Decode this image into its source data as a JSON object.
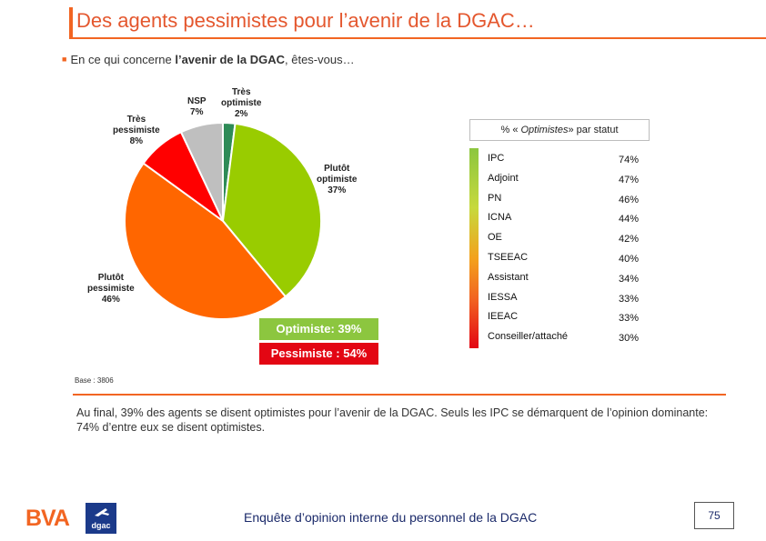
{
  "header": {
    "title": "Des agents pessimistes pour l’avenir de la DGAC…",
    "question_prefix": "En ce qui concerne ",
    "question_bold": "l’avenir de la DGAC",
    "question_suffix": ", êtes-vous…"
  },
  "colors": {
    "accent": "#f26522",
    "very_optimistic": "#2e8b57",
    "optimistic": "#99cc00",
    "pessimistic": "#ff6600",
    "very_pessimistic": "#ff0000",
    "nsp": "#bfbfbf"
  },
  "chart_data": [
    {
      "type": "pie",
      "title": "En ce qui concerne l’avenir de la DGAC, êtes-vous…",
      "slices": [
        {
          "label_lines": [
            "Très",
            "optimiste"
          ],
          "value": 2,
          "value_label": "2%",
          "color": "#2e8b57"
        },
        {
          "label_lines": [
            "Plutôt",
            "optimiste"
          ],
          "value": 37,
          "value_label": "37%",
          "color": "#99cc00"
        },
        {
          "label_lines": [
            "Plutôt",
            "pessimiste"
          ],
          "value": 46,
          "value_label": "46%",
          "color": "#ff6600"
        },
        {
          "label_lines": [
            "Très",
            "pessimiste"
          ],
          "value": 8,
          "value_label": "8%",
          "color": "#ff0000"
        },
        {
          "label_lines": [
            "NSP"
          ],
          "value": 7,
          "value_label": "7%",
          "color": "#bfbfbf"
        }
      ],
      "summary": {
        "optimiste": "Optimiste: 39%",
        "pessimiste": "Pessimiste : 54%"
      }
    },
    {
      "type": "table",
      "title": "% « Optimistes » par statut",
      "title_prefix": "% « ",
      "title_italic": "Optimistes",
      "title_suffix": "» par statut",
      "rows": [
        {
          "statut": "IPC",
          "value": 74,
          "value_label": "74%"
        },
        {
          "statut": "Adjoint",
          "value": 47,
          "value_label": "47%"
        },
        {
          "statut": "PN",
          "value": 46,
          "value_label": "46%"
        },
        {
          "statut": "ICNA",
          "value": 44,
          "value_label": "44%"
        },
        {
          "statut": "OE",
          "value": 42,
          "value_label": "42%"
        },
        {
          "statut": "TSEEAC",
          "value": 40,
          "value_label": "40%"
        },
        {
          "statut": "Assistant",
          "value": 34,
          "value_label": "34%"
        },
        {
          "statut": "IESSA",
          "value": 33,
          "value_label": "33%"
        },
        {
          "statut": "IEEAC",
          "value": 33,
          "value_label": "33%"
        },
        {
          "statut": "Conseiller/attaché",
          "value": 30,
          "value_label": "30%"
        }
      ]
    }
  ],
  "base_note": "Base : 3806",
  "comment": "Au final, 39% des agents se disent optimistes pour l’avenir de la DGAC. Seuls les IPC se démarquent de l’opinion dominante: 74% d’entre eux se disent optimistes.",
  "footer": {
    "logo_bva": "BVA",
    "logo_dgac": "dgac",
    "text": "Enquête d’opinion interne du personnel de la DGAC",
    "page_number": "75"
  }
}
